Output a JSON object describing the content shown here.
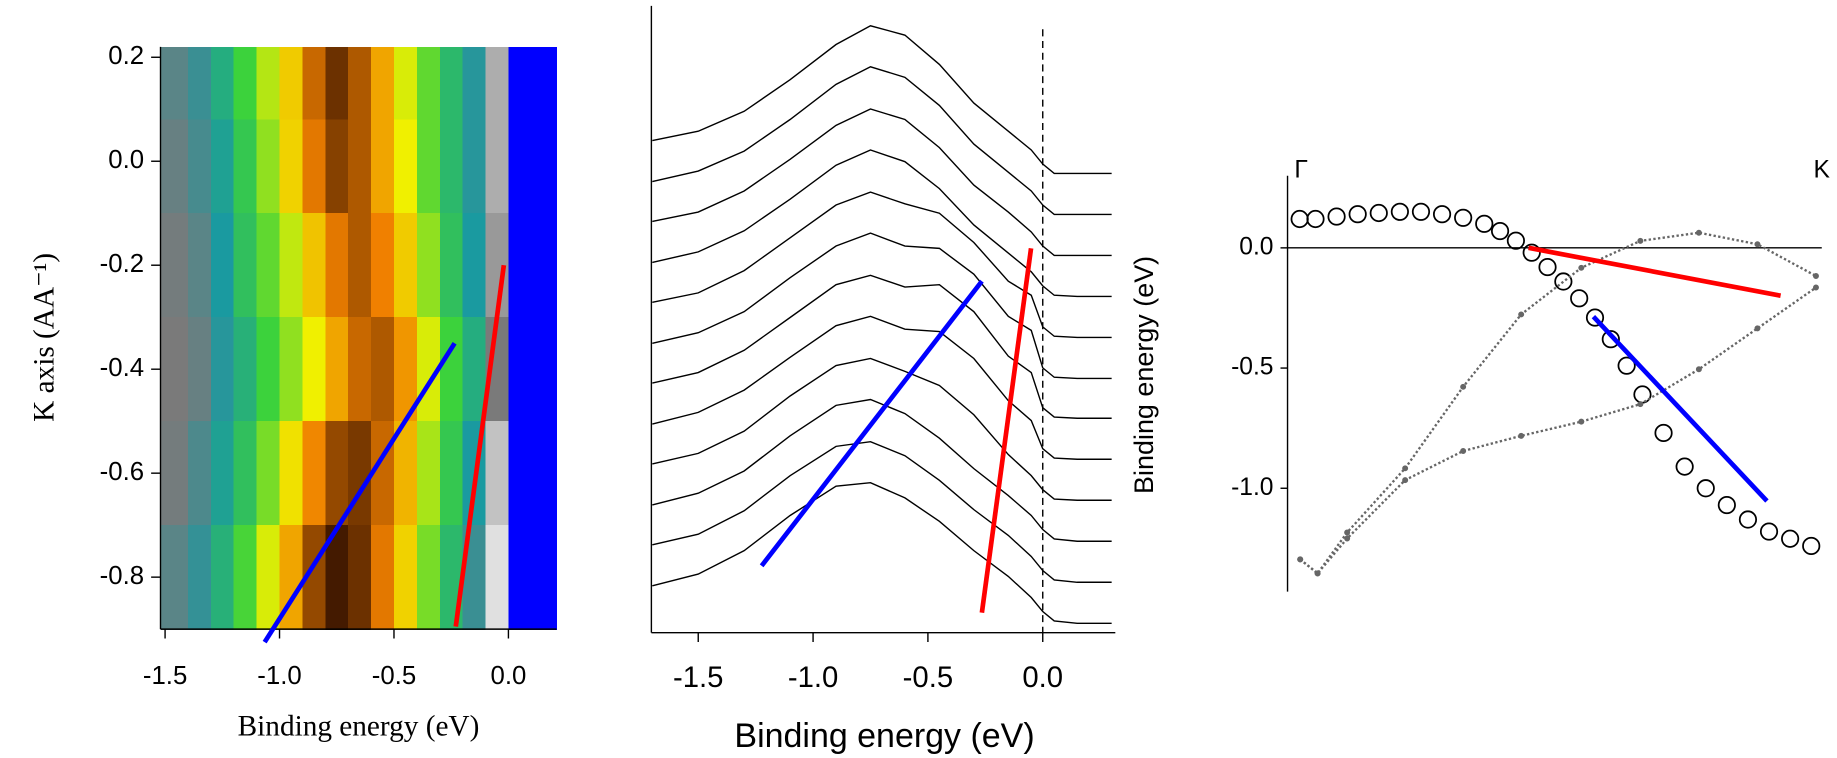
{
  "chart_data": [
    {
      "type": "heatmap",
      "xlabel": "Binding energy (eV)",
      "ylabel": "K axis (AA⁻¹)",
      "xlim": [
        -1.52,
        0.21
      ],
      "ylim": [
        -0.9,
        0.22
      ],
      "xticks": [
        -1.5,
        {
          "value": -1,
          "label": "-1.0"
        },
        -0.5,
        {
          "value": 0,
          "label": "0.0"
        }
      ],
      "yticks": [
        0.2,
        {
          "value": 0,
          "label": "0.0"
        },
        -0.2,
        -0.4,
        -0.6,
        -0.8
      ],
      "colorscale": [
        [
          0,
          "#0000ff"
        ],
        [
          0.12,
          "#ffffff"
        ],
        [
          0.25,
          "#7a7a7a"
        ],
        [
          0.4,
          "#1a9aa0"
        ],
        [
          0.55,
          "#3cd23c"
        ],
        [
          0.7,
          "#f0f000"
        ],
        [
          0.85,
          "#f08000"
        ],
        [
          1,
          "#2a0a00"
        ]
      ],
      "x": [
        -1.45,
        -1.35,
        -1.25,
        -1.15,
        -1.05,
        -0.95,
        -0.85,
        -0.75,
        -0.65,
        -0.55,
        -0.45,
        -0.35,
        -0.25,
        -0.15,
        -0.05,
        0.05,
        0.15
      ],
      "y": [
        0.16,
        0.0,
        -0.2,
        -0.4,
        -0.6,
        -0.8
      ],
      "z": [
        [
          0.3,
          0.35,
          0.45,
          0.55,
          0.65,
          0.75,
          0.88,
          0.95,
          0.9,
          0.8,
          0.68,
          0.58,
          0.48,
          0.38,
          0.2,
          0,
          0
        ],
        [
          0.28,
          0.33,
          0.42,
          0.52,
          0.62,
          0.74,
          0.86,
          0.93,
          0.9,
          0.8,
          0.7,
          0.58,
          0.48,
          0.38,
          0.2,
          0,
          0
        ],
        [
          0.26,
          0.3,
          0.4,
          0.5,
          0.58,
          0.66,
          0.76,
          0.86,
          0.9,
          0.85,
          0.75,
          0.62,
          0.5,
          0.4,
          0.22,
          0,
          0
        ],
        [
          0.25,
          0.28,
          0.38,
          0.46,
          0.55,
          0.62,
          0.7,
          0.8,
          0.88,
          0.9,
          0.82,
          0.68,
          0.55,
          0.45,
          0.25,
          0,
          0
        ],
        [
          0.26,
          0.32,
          0.42,
          0.5,
          0.6,
          0.72,
          0.84,
          0.92,
          0.94,
          0.88,
          0.78,
          0.64,
          0.52,
          0.4,
          0.18,
          0,
          0
        ],
        [
          0.3,
          0.36,
          0.46,
          0.56,
          0.68,
          0.8,
          0.92,
          0.98,
          0.95,
          0.86,
          0.74,
          0.6,
          0.48,
          0.35,
          0.15,
          0,
          0
        ]
      ],
      "lines": [
        {
          "color": "#0000ff",
          "x": [
            -1.065,
            -0.235
          ],
          "y": [
            -0.925,
            -0.35
          ]
        },
        {
          "color": "#ff0000",
          "x": [
            -0.23,
            -0.02
          ],
          "y": [
            -0.895,
            -0.2
          ]
        }
      ]
    },
    {
      "type": "line",
      "xlabel": "Binding energy (eV)",
      "xlim": [
        -1.704,
        0.316
      ],
      "ylim": [
        0,
        535
      ],
      "xticks": [
        -1.5,
        {
          "value": -1,
          "label": "-1.0"
        },
        -0.5,
        {
          "value": 0,
          "label": "0.0"
        }
      ],
      "vline": 0,
      "x": [
        -1.7,
        -1.5,
        -1.3,
        -1.1,
        -0.9,
        -0.75,
        -0.6,
        -0.45,
        -0.3,
        -0.15,
        -0.05,
        0,
        0.05,
        0.15,
        0.3
      ],
      "series": [
        {
          "color": "#000000",
          "values": [
            420,
            428,
            445,
            472,
            502,
            518,
            510,
            485,
            452,
            428,
            412,
            400,
            392,
            392,
            392
          ]
        },
        {
          "color": "#000000",
          "values": [
            385,
            394,
            411,
            438,
            468,
            483,
            474,
            450,
            417,
            393,
            377,
            365,
            357,
            357,
            357
          ]
        },
        {
          "color": "#000000",
          "values": [
            351,
            359,
            377,
            404,
            433,
            447,
            438,
            414,
            382,
            359,
            342,
            330,
            322,
            322,
            322
          ]
        },
        {
          "color": "#000000",
          "values": [
            316,
            325,
            343,
            370,
            399,
            412,
            402,
            379,
            348,
            324,
            308,
            296,
            288,
            287,
            287
          ]
        },
        {
          "color": "#000000",
          "values": [
            282,
            290,
            309,
            337,
            365,
            376,
            366,
            358,
            333,
            300,
            288,
            261,
            253,
            252,
            252
          ]
        },
        {
          "color": "#000000",
          "values": [
            247,
            256,
            274,
            303,
            330,
            341,
            330,
            328,
            306,
            270,
            258,
            226,
            218,
            217,
            217
          ]
        },
        {
          "color": "#000000",
          "values": [
            213,
            222,
            241,
            269,
            297,
            305,
            295,
            297,
            274,
            236,
            222,
            192,
            184,
            183,
            183
          ]
        },
        {
          "color": "#000000",
          "values": [
            178,
            188,
            207,
            235,
            262,
            270,
            259,
            257,
            234,
            198,
            181,
            157,
            149,
            148,
            148
          ]
        },
        {
          "color": "#000000",
          "values": [
            144,
            153,
            172,
            202,
            228,
            234,
            223,
            211,
            186,
            152,
            134,
            122,
            114,
            113,
            113
          ]
        },
        {
          "color": "#000000",
          "values": [
            109,
            119,
            138,
            168,
            194,
            199,
            187,
            166,
            140,
            117,
            100,
            88,
            80,
            78,
            78
          ]
        },
        {
          "color": "#000000",
          "values": [
            75,
            84,
            104,
            134,
            159,
            163,
            151,
            130,
            105,
            83,
            65,
            53,
            45,
            43,
            43
          ]
        },
        {
          "color": "#000000",
          "values": [
            40,
            50,
            70,
            100,
            125,
            128,
            115,
            95,
            70,
            48,
            30,
            18,
            10,
            8,
            8
          ]
        }
      ],
      "lines": [
        {
          "color": "#0000ff",
          "x": [
            -1.224,
            -0.265
          ],
          "y": [
            57,
            300
          ]
        },
        {
          "color": "#ff0000",
          "x": [
            -0.265,
            -0.051
          ],
          "y": [
            17,
            328
          ]
        }
      ]
    },
    {
      "type": "scatter",
      "ylabel": "Binding energy (eV)",
      "xlim": [
        -0.013,
        1.0
      ],
      "ylim": [
        -1.43,
        0.3
      ],
      "xticks": [
        {
          "value": 0,
          "label": "Γ"
        },
        {
          "value": 1,
          "label": "K"
        }
      ],
      "yticks": [
        {
          "value": 0,
          "label": "0.0"
        },
        -0.5,
        {
          "value": -1,
          "label": "-1.0"
        }
      ],
      "zeroline": true,
      "series": [
        {
          "marker": "circle",
          "color": "#000000",
          "x": [
            0.01,
            0.04,
            0.08,
            0.12,
            0.16,
            0.2,
            0.24,
            0.28,
            0.32,
            0.36,
            0.39,
            0.42,
            0.45,
            0.48,
            0.51,
            0.54,
            0.57,
            0.6,
            0.63,
            0.66,
            0.7,
            0.74,
            0.78,
            0.82,
            0.86,
            0.9,
            0.94,
            0.98
          ],
          "values": [
            0.12,
            0.12,
            0.13,
            0.14,
            0.145,
            0.15,
            0.15,
            0.14,
            0.125,
            0.1,
            0.07,
            0.03,
            -0.02,
            -0.08,
            -0.14,
            -0.21,
            -0.29,
            -0.38,
            -0.49,
            -0.61,
            -0.77,
            -0.91,
            -1.0,
            -1.07,
            -1.13,
            -1.18,
            -1.21,
            -1.24
          ]
        },
        {
          "marker": "dot",
          "color": "#666666",
          "x": [
            0.011,
            0.044,
            0.1,
            0.21,
            0.32,
            0.43,
            0.544,
            0.656,
            0.767,
            0.878,
            0.989
          ],
          "values": [
            -1.296,
            -1.354,
            -1.184,
            -0.917,
            -0.578,
            -0.277,
            -0.083,
            0.029,
            0.063,
            0.015,
            -0.117
          ]
        },
        {
          "marker": "dot",
          "color": "#666666",
          "x": [
            0.011,
            0.044,
            0.1,
            0.21,
            0.32,
            0.43,
            0.544,
            0.656,
            0.767,
            0.878,
            0.989
          ],
          "values": [
            -1.296,
            -1.354,
            -1.209,
            -0.966,
            -0.845,
            -0.782,
            -0.723,
            -0.65,
            -0.505,
            -0.335,
            -0.165
          ]
        }
      ],
      "lines": [
        {
          "color": "#ff0000",
          "x": [
            0.444,
            0.922
          ],
          "y": [
            0.0,
            -0.199
          ]
        },
        {
          "color": "#0000ff",
          "x": [
            0.567,
            0.896
          ],
          "y": [
            -0.286,
            -1.053
          ]
        }
      ]
    }
  ]
}
